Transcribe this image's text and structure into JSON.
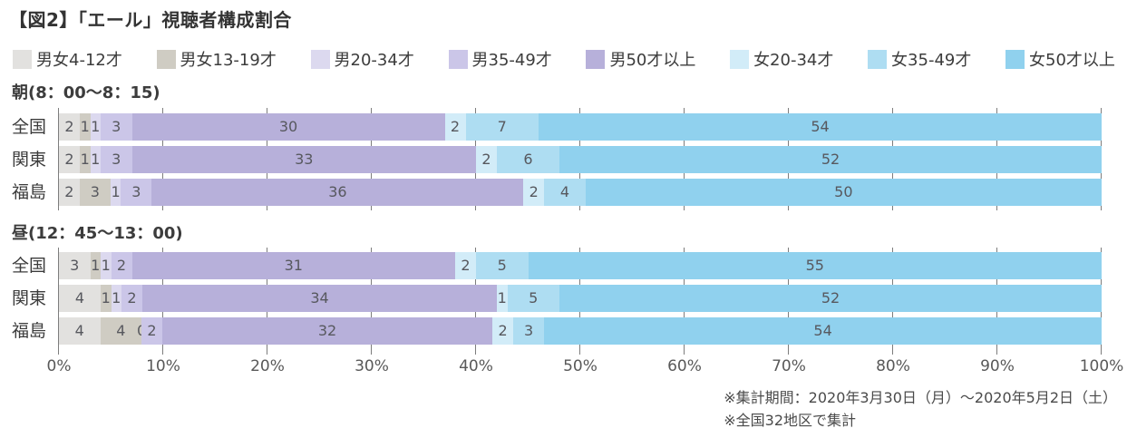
{
  "title": "【図2】「エール」視聴者構成割合",
  "legend": [
    {
      "label": "男女4-12才",
      "color": "#e2e1df"
    },
    {
      "label": "男女13-19才",
      "color": "#cfccc3"
    },
    {
      "label": "男20-34才",
      "color": "#dcd9ef"
    },
    {
      "label": "男35-49才",
      "color": "#cbc6e8"
    },
    {
      "label": "男50才以上",
      "color": "#b7b0da"
    },
    {
      "label": "女20-34才",
      "color": "#d2ecf8"
    },
    {
      "label": "女35-49才",
      "color": "#aeddf2"
    },
    {
      "label": "女50才以上",
      "color": "#90d1ee"
    }
  ],
  "chart_data": {
    "type": "bar",
    "orientation": "horizontal",
    "stacked": true,
    "unit": "%",
    "grid": true,
    "legend_position": "top",
    "categories": [
      "男女4-12才",
      "男女13-19才",
      "男20-34才",
      "男35-49才",
      "男50才以上",
      "女20-34才",
      "女35-49才",
      "女50才以上"
    ],
    "groups": [
      {
        "header": "朝(8：00〜8：15)",
        "rows": [
          {
            "label": "全国",
            "values": [
              2,
              1,
              1,
              3,
              30,
              2,
              7,
              54
            ]
          },
          {
            "label": "関東",
            "values": [
              2,
              1,
              1,
              3,
              33,
              2,
              6,
              52
            ]
          },
          {
            "label": "福島",
            "values": [
              2,
              3,
              1,
              3,
              36,
              2,
              4,
              50
            ]
          }
        ]
      },
      {
        "header": "昼(12：45〜13：00)",
        "rows": [
          {
            "label": "全国",
            "values": [
              3,
              1,
              1,
              2,
              31,
              2,
              5,
              55
            ]
          },
          {
            "label": "関東",
            "values": [
              4,
              1,
              1,
              2,
              34,
              1,
              5,
              52
            ]
          },
          {
            "label": "福島",
            "values": [
              4,
              4,
              0,
              2,
              32,
              2,
              3,
              54
            ]
          }
        ]
      }
    ],
    "x_axis": {
      "min": 0,
      "max": 100,
      "ticks": [
        "0%",
        "10%",
        "20%",
        "30%",
        "40%",
        "50%",
        "60%",
        "70%",
        "80%",
        "90%",
        "100%"
      ]
    }
  },
  "footnotes": [
    "※集計期間：2020年3月30日（月）〜2020年5月2日（土）",
    "※全国32地区で集計"
  ]
}
